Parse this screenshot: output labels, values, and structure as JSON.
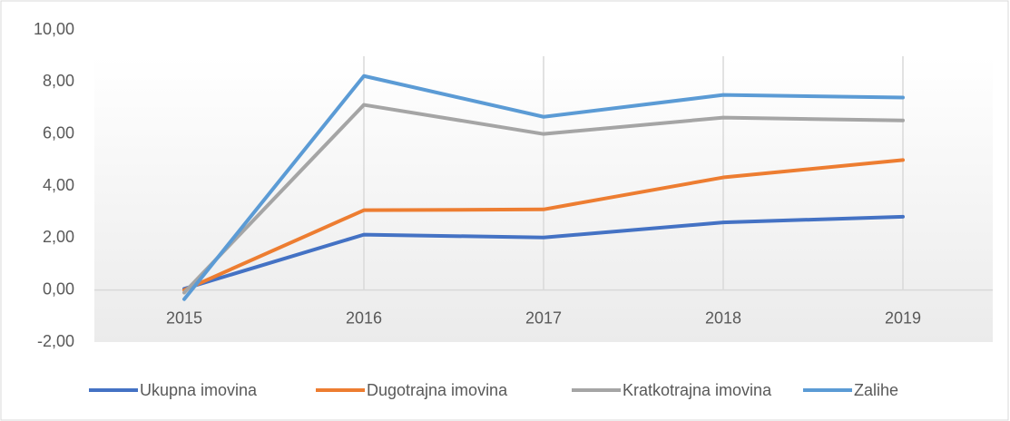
{
  "chart_data": {
    "type": "line",
    "categories": [
      "2015",
      "2016",
      "2017",
      "2018",
      "2019"
    ],
    "series": [
      {
        "name": "Ukupna imovina",
        "color": "#4472c4",
        "values": [
          0.05,
          2.13,
          2.02,
          2.6,
          2.82
        ]
      },
      {
        "name": "Dugotrajna imovina",
        "color": "#ed7d31",
        "values": [
          0.0,
          3.07,
          3.1,
          4.33,
          5.0
        ]
      },
      {
        "name": "Kratkotrajna imovina",
        "color": "#a5a5a5",
        "values": [
          -0.1,
          7.12,
          6.0,
          6.63,
          6.52
        ]
      },
      {
        "name": "Zalihe",
        "color": "#5b9bd5",
        "values": [
          -0.35,
          8.23,
          6.66,
          7.5,
          7.4
        ]
      }
    ],
    "ylim": [
      -2,
      10
    ],
    "yticks": [
      {
        "value": -2,
        "label": "-2,00"
      },
      {
        "value": 0,
        "label": "0,00"
      },
      {
        "value": 2,
        "label": "2,00"
      },
      {
        "value": 4,
        "label": "4,00"
      },
      {
        "value": 6,
        "label": "6,00"
      },
      {
        "value": 8,
        "label": "8,00"
      },
      {
        "value": 10,
        "label": "10,00"
      }
    ],
    "legend": "bottom"
  }
}
